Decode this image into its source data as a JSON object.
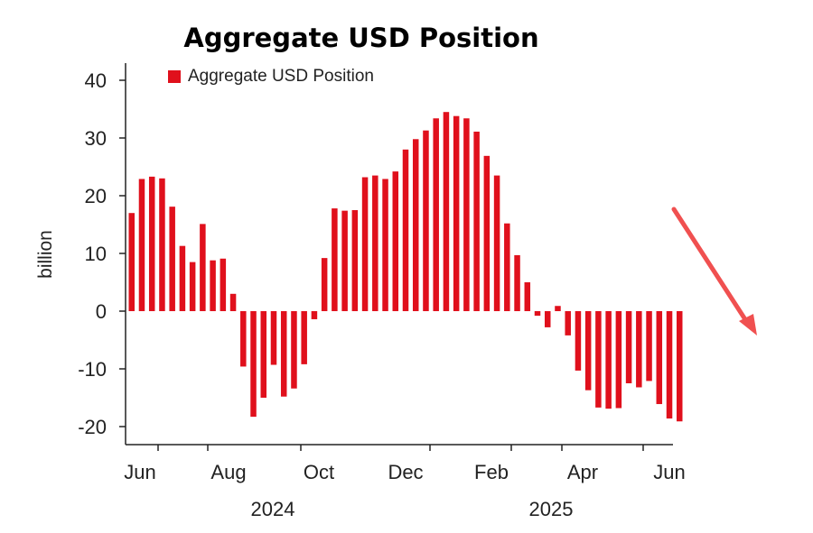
{
  "chart_data": {
    "type": "bar",
    "title": "Aggregate USD Position",
    "ylabel": "billion",
    "xlabel": "",
    "ylim": [
      -22,
      43
    ],
    "yticks": [
      40,
      30,
      20,
      10,
      0,
      -10,
      -20
    ],
    "ytick_labels": [
      "40",
      "30",
      "20",
      "10",
      "0",
      "-10",
      "-20"
    ],
    "xtick_labels": [
      "Jun",
      "Aug",
      "Oct",
      "Dec",
      "Feb",
      "Apr",
      "Jun"
    ],
    "year_labels": [
      "2024",
      "2025"
    ],
    "legend": {
      "label": "Aggregate USD Position",
      "position": "top-left"
    },
    "grid": false,
    "bar_color": "#e0101c",
    "series": [
      {
        "name": "Aggregate USD Position",
        "values": [
          17.0,
          22.9,
          23.3,
          23.0,
          18.1,
          11.3,
          8.5,
          15.1,
          8.8,
          9.1,
          3.0,
          -9.6,
          -18.3,
          -15.0,
          -9.3,
          -14.8,
          -13.4,
          -9.2,
          -1.4,
          9.2,
          17.8,
          17.4,
          17.5,
          23.2,
          23.5,
          22.9,
          24.2,
          28.0,
          29.8,
          31.3,
          33.4,
          34.5,
          33.8,
          33.4,
          31.1,
          26.9,
          23.5,
          15.2,
          9.7,
          5.0,
          -0.8,
          -2.8,
          0.9,
          -4.2,
          -10.3,
          -13.7,
          -16.7,
          -16.9,
          -16.8,
          -12.5,
          -13.2,
          -12.1,
          -16.1,
          -18.6,
          -19.1
        ]
      }
    ]
  },
  "colors": {
    "bar": "#e0101c",
    "annotation_arrow": "#f05050"
  },
  "annotation": {
    "arrow_icon": "arrow-down-right-icon"
  }
}
